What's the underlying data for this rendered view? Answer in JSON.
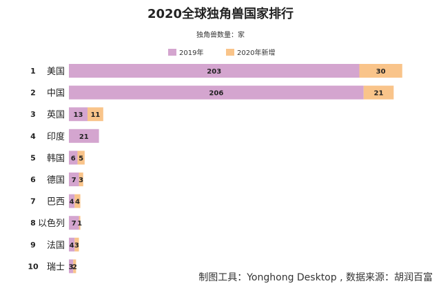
{
  "chart_data": {
    "type": "bar",
    "orientation": "horizontal",
    "stacked": true,
    "title": "2020全球独角兽国家排行",
    "subtitle": "独角兽数量：家",
    "ranks": [
      "1",
      "2",
      "3",
      "4",
      "5",
      "6",
      "7",
      "8",
      "9",
      "10"
    ],
    "categories": [
      "美国",
      "中国",
      "英国",
      "印度",
      "韩国",
      "德国",
      "巴西",
      "以色列",
      "法国",
      "瑞士"
    ],
    "series": [
      {
        "name": "2019年",
        "color": "#d4a5cf",
        "values": [
          203,
          206,
          13,
          21,
          6,
          7,
          4,
          7,
          4,
          3
        ]
      },
      {
        "name": "2020年新增",
        "color": "#f9c48a",
        "values": [
          30,
          21,
          11,
          null,
          5,
          3,
          4,
          1,
          3,
          2
        ]
      }
    ],
    "xlim": [
      0,
      236
    ],
    "grid": false,
    "legend_position": "top-center"
  },
  "footer": {
    "source": "制图工具：Yonghong Desktop , 数据来源：胡润百富"
  }
}
